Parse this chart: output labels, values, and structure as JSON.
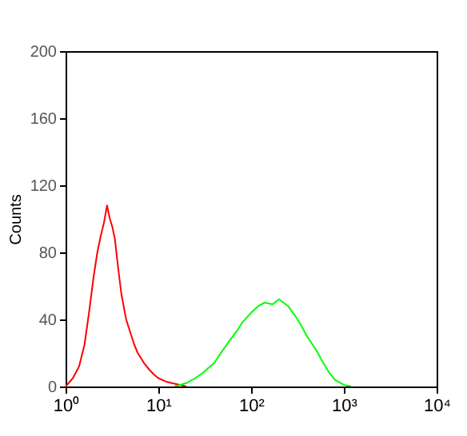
{
  "chart_data": {
    "type": "line",
    "ylabel": "Counts",
    "log": "x",
    "xlim": [
      1,
      10000
    ],
    "xticks": [
      {
        "value": 1,
        "label": "10⁰"
      },
      {
        "value": 10,
        "label": "10¹"
      },
      {
        "value": 100,
        "label": "10²"
      },
      {
        "value": 1000,
        "label": "10³"
      },
      {
        "value": 10000,
        "label": "10⁴"
      }
    ],
    "ylim": [
      0,
      200
    ],
    "yticks": [
      0,
      40,
      80,
      120,
      160,
      200
    ],
    "grid": false,
    "marker": "none",
    "line_style": "solid",
    "series": [
      {
        "color": "#ff0000",
        "x": [
          1,
          1.2,
          1.4,
          1.6,
          1.8,
          2,
          2.2,
          2.4,
          2.6,
          2.8,
          3,
          3.2,
          3.4,
          3.7,
          4,
          4.5,
          5,
          5.5,
          6,
          7,
          8,
          9,
          10,
          12,
          14,
          17,
          20
        ],
        "values": [
          0,
          5,
          12,
          25,
          45,
          65,
          80,
          90,
          98,
          108,
          100,
          95,
          88,
          70,
          55,
          40,
          32,
          25,
          20,
          14,
          10,
          7,
          5,
          3,
          2,
          1,
          0
        ]
      },
      {
        "color": "#00ff00",
        "x": [
          15,
          20,
          25,
          30,
          40,
          50,
          60,
          70,
          80,
          100,
          120,
          140,
          170,
          200,
          250,
          300,
          350,
          400,
          500,
          600,
          700,
          800,
          1000,
          1200
        ],
        "values": [
          0,
          2,
          5,
          8,
          14,
          22,
          28,
          33,
          38,
          44,
          48,
          50,
          49,
          52,
          48,
          42,
          36,
          30,
          22,
          14,
          8,
          4,
          1,
          0
        ]
      }
    ]
  }
}
